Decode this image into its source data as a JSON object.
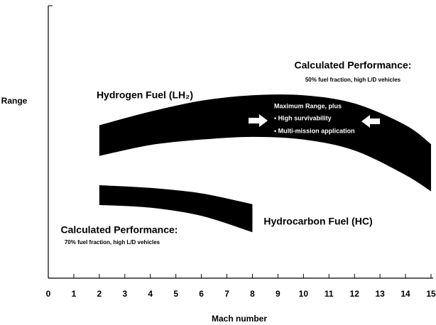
{
  "chart_data": {
    "type": "range_area",
    "xlabel": "Mach number",
    "ylabel": "Range",
    "xlim": [
      0,
      15
    ],
    "xticks": [
      0,
      1,
      2,
      3,
      4,
      5,
      6,
      7,
      8,
      9,
      10,
      11,
      12,
      13,
      14,
      15
    ],
    "ylim": [
      0,
      100
    ],
    "series": [
      {
        "name": "Hydrogen Fuel (LH₂)",
        "color": "#000000",
        "x": [
          2,
          4,
          6,
          8,
          10,
          12,
          14,
          15
        ],
        "high": [
          56,
          61,
          65,
          67,
          67,
          64,
          56,
          49
        ],
        "low": [
          45,
          49,
          51,
          52,
          51,
          47,
          38,
          32
        ]
      },
      {
        "name": "Hydrocarbon Fuel (HC)",
        "color": "#000000",
        "x": [
          2,
          4,
          6,
          8
        ],
        "high": [
          34,
          33,
          31,
          27
        ],
        "low": [
          27,
          26,
          23,
          17
        ]
      }
    ],
    "annotations": [
      "Calculated Performance:",
      "50% fuel fraction, high L/D vehicles",
      "Maximum Range, plus",
      "• High survivability",
      "• Multi-mission application",
      "Calculated Performance:",
      "70% fuel fraction, high L/D vehicles"
    ]
  }
}
